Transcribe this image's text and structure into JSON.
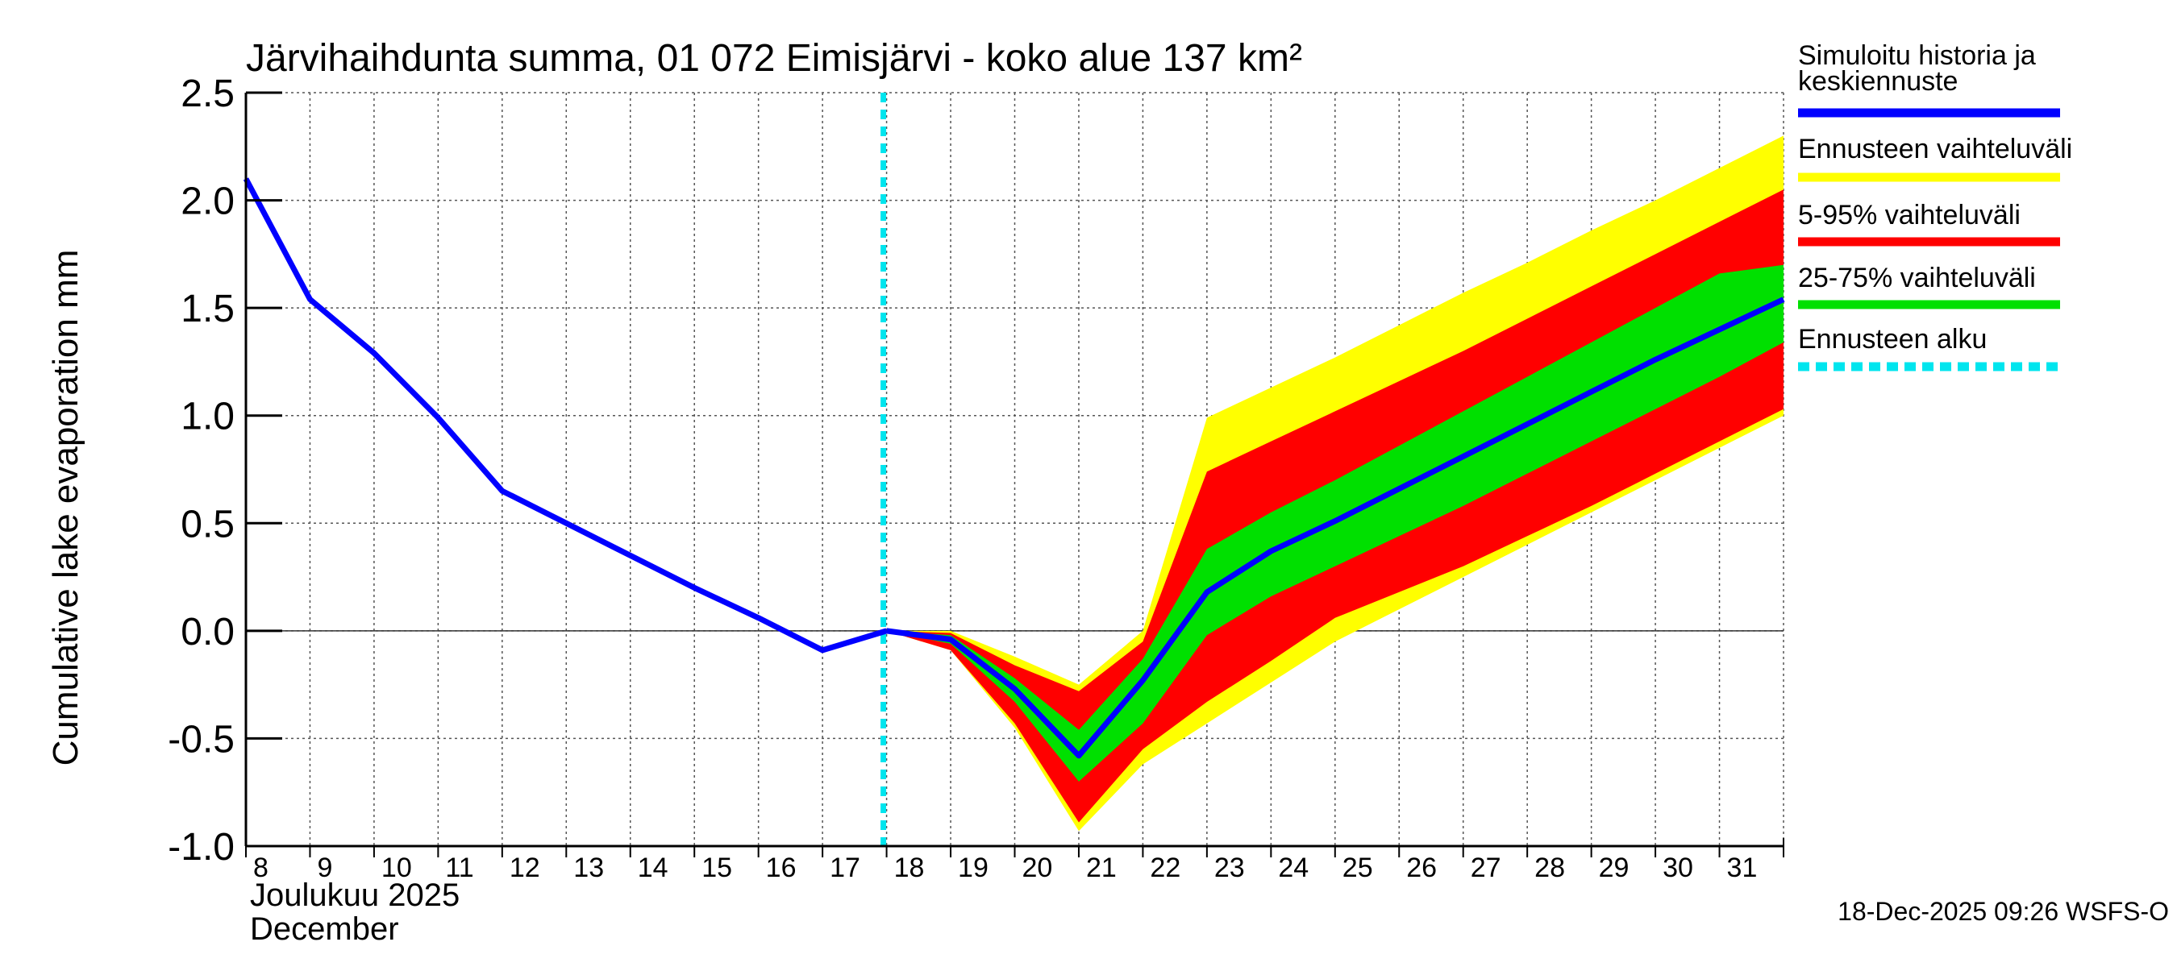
{
  "chart_data": {
    "type": "area",
    "title": "Järvihaihdunta summa, 01 072 Eimisjärvi - koko alue 137 km²",
    "ylabel": "Cumulative lake evaporation   mm",
    "ylim": [
      -1.0,
      2.5
    ],
    "xlim": [
      8,
      32
    ],
    "y_ticks": [
      {
        "value": 2.5,
        "label": "2.5"
      },
      {
        "value": 2.0,
        "label": "2.0"
      },
      {
        "value": 1.5,
        "label": "1.5"
      },
      {
        "value": 1.0,
        "label": "1.0"
      },
      {
        "value": 0.5,
        "label": "0.5"
      },
      {
        "value": 0.0,
        "label": "0.0"
      },
      {
        "value": -0.5,
        "label": "-0.5"
      },
      {
        "value": -1.0,
        "label": "-1.0"
      }
    ],
    "x_ticks": [
      "8",
      "9",
      "10",
      "11",
      "12",
      "13",
      "14",
      "15",
      "16",
      "17",
      "18",
      "19",
      "20",
      "21",
      "22",
      "23",
      "24",
      "25",
      "26",
      "27",
      "28",
      "29",
      "30",
      "31"
    ],
    "month_label_fi": "Joulukuu  2025",
    "month_label_en": "December",
    "forecast_start_x": 18,
    "history": {
      "name": "Simuloitu historia ja keskiennuste",
      "x": [
        8,
        9,
        10,
        11,
        12,
        13,
        14,
        15,
        16,
        17,
        18
      ],
      "y": [
        2.1,
        1.54,
        1.29,
        0.99,
        0.65,
        0.5,
        0.35,
        0.2,
        0.06,
        -0.09,
        0.0
      ]
    },
    "forecast_x": [
      18,
      19,
      20,
      21,
      22,
      23,
      24,
      25,
      26,
      27,
      28,
      29,
      30,
      31,
      32
    ],
    "median": [
      0.0,
      -0.04,
      -0.27,
      -0.58,
      -0.23,
      0.18,
      0.37,
      0.51,
      0.66,
      0.81,
      0.96,
      1.11,
      1.26,
      1.4,
      1.54
    ],
    "band_outer": {
      "name": "Ennusteen vaihteluväli",
      "upper": [
        0.0,
        0.0,
        -0.12,
        -0.25,
        0.0,
        0.99,
        1.13,
        1.27,
        1.42,
        1.57,
        1.71,
        1.86,
        2.0,
        2.15,
        2.3
      ],
      "lower": [
        0.0,
        -0.09,
        -0.45,
        -0.93,
        -0.62,
        -0.43,
        -0.24,
        -0.05,
        0.1,
        0.25,
        0.4,
        0.55,
        0.7,
        0.85,
        1.0
      ]
    },
    "band_5_95": {
      "name": "5-95% vaihteluväli",
      "upper": [
        0.0,
        -0.01,
        -0.16,
        -0.28,
        -0.05,
        0.74,
        0.88,
        1.02,
        1.16,
        1.3,
        1.45,
        1.6,
        1.75,
        1.9,
        2.05
      ],
      "lower": [
        0.0,
        -0.09,
        -0.43,
        -0.89,
        -0.55,
        -0.33,
        -0.14,
        0.06,
        0.18,
        0.3,
        0.44,
        0.58,
        0.73,
        0.88,
        1.03
      ]
    },
    "band_25_75": {
      "name": "25-75% vaihteluväli",
      "upper": [
        0.0,
        -0.02,
        -0.22,
        -0.46,
        -0.13,
        0.38,
        0.55,
        0.7,
        0.86,
        1.02,
        1.18,
        1.34,
        1.5,
        1.66,
        1.7
      ],
      "lower": [
        0.0,
        -0.06,
        -0.33,
        -0.7,
        -0.43,
        -0.02,
        0.16,
        0.3,
        0.44,
        0.58,
        0.73,
        0.88,
        1.03,
        1.18,
        1.34
      ]
    },
    "legend": [
      {
        "label": "Simuloitu historia ja keskiennuste",
        "color": "#0000ff",
        "style": "solid"
      },
      {
        "label": "Ennusteen vaihteluväli",
        "color": "#ffff00",
        "style": "solid"
      },
      {
        "label": "5-95% vaihteluväli",
        "color": "#ff0000",
        "style": "solid"
      },
      {
        "label": "25-75% vaihteluväli",
        "color": "#00e000",
        "style": "solid"
      },
      {
        "label": "Ennusteen alku",
        "color": "#00e5ee",
        "style": "dashed"
      }
    ],
    "footer": "18-Dec-2025 09:26 WSFS-O"
  },
  "colors": {
    "history": "#0000ff",
    "outer": "#ffff00",
    "band95": "#ff0000",
    "band75": "#00e000",
    "forecast_start": "#00e5ee"
  }
}
